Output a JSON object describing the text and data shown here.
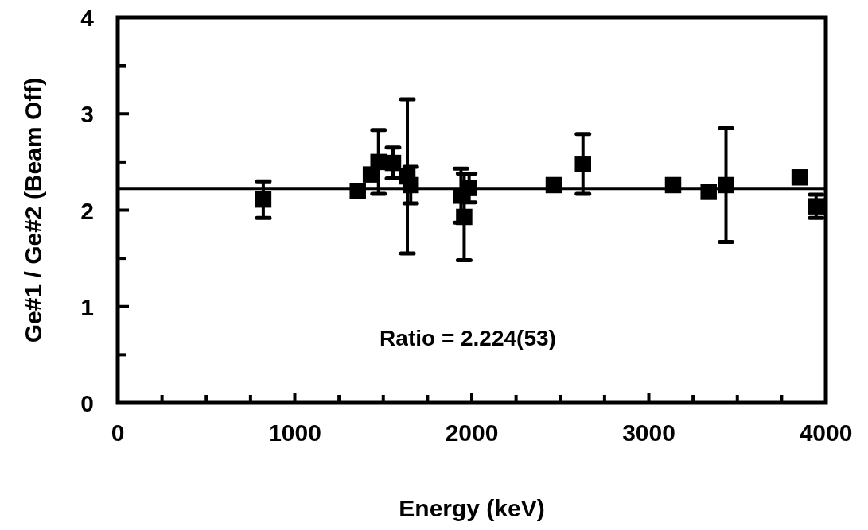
{
  "chart_data": {
    "type": "scatter",
    "xlabel": "Energy (keV)",
    "ylabel": "Ge#1 / Ge#2 (Beam Off)",
    "xlim": [
      0,
      4000
    ],
    "ylim": [
      0,
      4
    ],
    "xticks": [
      0,
      {
        "value": 250,
        "label": null
      },
      {
        "value": 500,
        "label": null
      },
      {
        "value": 750,
        "label": null
      },
      1000,
      {
        "value": 1250,
        "label": null
      },
      {
        "value": 1500,
        "label": null
      },
      {
        "value": 1750,
        "label": null
      },
      2000,
      {
        "value": 2250,
        "label": null
      },
      {
        "value": 2500,
        "label": null
      },
      {
        "value": 2750,
        "label": null
      },
      3000,
      {
        "value": 3250,
        "label": null
      },
      {
        "value": 3500,
        "label": null
      },
      {
        "value": 3750,
        "label": null
      },
      4000
    ],
    "yticks": [
      0,
      {
        "value": 0.5,
        "label": null
      },
      1,
      {
        "value": 1.5,
        "label": null
      },
      2,
      {
        "value": 2.5,
        "label": null
      },
      3,
      {
        "value": 3.5,
        "label": null
      },
      4
    ],
    "marker": "square",
    "grid": false,
    "series": [
      {
        "color": "#000000",
        "x": [
          822,
          1356,
          1430,
          1473,
          1555,
          1636,
          1655,
          1939,
          1957,
          1985,
          2463,
          2628,
          3137,
          3338,
          3436,
          3852,
          3945
        ],
        "values": [
          2.11,
          2.2,
          2.37,
          2.5,
          2.49,
          2.35,
          2.26,
          2.15,
          1.93,
          2.23,
          2.26,
          2.48,
          2.26,
          2.19,
          2.26,
          2.34,
          2.04
        ],
        "errors": [
          0.19,
          null,
          null,
          0.33,
          0.16,
          0.8,
          0.19,
          0.28,
          0.45,
          0.15,
          null,
          0.31,
          null,
          null,
          0.59,
          null,
          0.12
        ]
      }
    ],
    "ref_lines": [
      {
        "axis": "y",
        "value": 2.224,
        "color": "#000000"
      }
    ],
    "annotations": [
      "Ratio = 2.224(53)"
    ]
  }
}
